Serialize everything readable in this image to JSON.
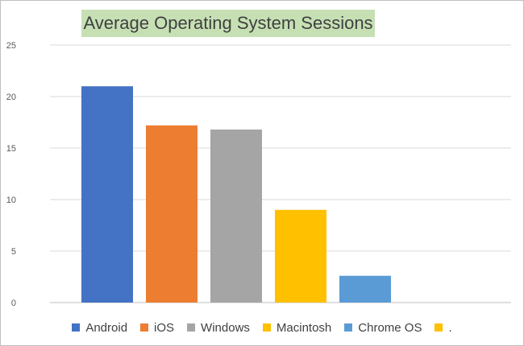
{
  "chart_data": {
    "type": "bar",
    "title": "Average Operating System Sessions",
    "categories": [
      "Android",
      "iOS",
      "Windows",
      "Macintosh",
      "Chrome OS",
      "."
    ],
    "values": [
      21,
      17.2,
      16.8,
      9,
      2.6,
      0
    ],
    "colors": [
      "#4472c4",
      "#ed7d31",
      "#a5a5a5",
      "#ffc000",
      "#5b9bd5",
      "#ffc000"
    ],
    "ylim": [
      0,
      25
    ],
    "yticks": [
      0,
      5,
      10,
      15,
      20,
      25
    ],
    "grid": true,
    "legend_position": "bottom",
    "title_background": "#c6e0b4"
  }
}
